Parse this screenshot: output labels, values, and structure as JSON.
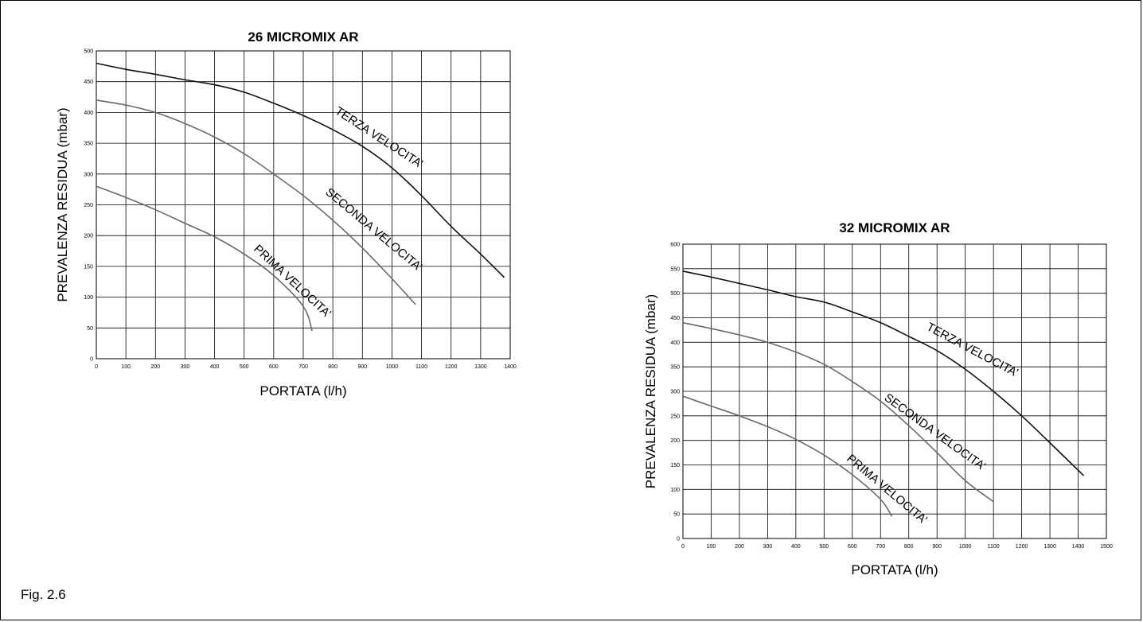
{
  "figure_label": "Fig. 2.6",
  "colors": {
    "terza": "#111111",
    "seconda": "#6a6a6a",
    "prima": "#6a6a6a",
    "grid": "#000000"
  },
  "chart_data": [
    {
      "type": "line",
      "title": "26 MICROMIX AR",
      "xlabel": "PORTATA (l/h)",
      "ylabel": "PREVALENZA RESIDUA (mbar)",
      "xlim": [
        0,
        1400
      ],
      "ylim": [
        0,
        500
      ],
      "xticks": [
        0,
        100,
        200,
        300,
        400,
        500,
        600,
        700,
        800,
        900,
        1000,
        1100,
        1200,
        1300,
        1400
      ],
      "yticks": [
        0,
        50,
        100,
        150,
        200,
        250,
        300,
        350,
        400,
        450,
        500
      ],
      "grid": true,
      "series": [
        {
          "key": "terza",
          "name": "TERZA VELOCITA’",
          "x": [
            0,
            100,
            200,
            300,
            400,
            500,
            600,
            700,
            800,
            900,
            1000,
            1100,
            1200,
            1300,
            1380
          ],
          "y": [
            480,
            470,
            462,
            453,
            445,
            433,
            415,
            395,
            372,
            345,
            310,
            265,
            215,
            170,
            132
          ]
        },
        {
          "key": "seconda",
          "name": "SECONDA VELOCITA’",
          "x": [
            0,
            100,
            200,
            300,
            400,
            500,
            600,
            700,
            800,
            900,
            1000,
            1080
          ],
          "y": [
            420,
            412,
            400,
            382,
            360,
            333,
            300,
            265,
            225,
            180,
            130,
            88
          ]
        },
        {
          "key": "prima",
          "name": "PRIMA VELOCITA’",
          "x": [
            0,
            100,
            200,
            300,
            400,
            500,
            600,
            700,
            730
          ],
          "y": [
            280,
            262,
            242,
            220,
            198,
            170,
            135,
            85,
            45
          ]
        }
      ]
    },
    {
      "type": "line",
      "title": "32 MICROMIX AR",
      "xlabel": "PORTATA (l/h)",
      "ylabel": "PREVALENZA RESIDUA (mbar)",
      "xlim": [
        0,
        1500
      ],
      "ylim": [
        0,
        600
      ],
      "xticks": [
        0,
        100,
        200,
        300,
        400,
        500,
        600,
        700,
        800,
        900,
        1000,
        1100,
        1200,
        1300,
        1400,
        1500
      ],
      "yticks": [
        0,
        50,
        100,
        150,
        200,
        250,
        300,
        350,
        400,
        450,
        500,
        550,
        600
      ],
      "grid": true,
      "series": [
        {
          "key": "terza",
          "name": "TERZA VELOCITA’",
          "x": [
            0,
            100,
            200,
            300,
            400,
            500,
            600,
            700,
            800,
            900,
            1000,
            1100,
            1200,
            1300,
            1420
          ],
          "y": [
            545,
            533,
            520,
            507,
            493,
            482,
            462,
            440,
            412,
            383,
            345,
            300,
            250,
            195,
            128
          ]
        },
        {
          "key": "seconda",
          "name": "SECONDA VELOCITA’",
          "x": [
            0,
            100,
            200,
            300,
            400,
            500,
            600,
            700,
            800,
            900,
            1000,
            1100
          ],
          "y": [
            440,
            428,
            415,
            400,
            380,
            355,
            320,
            280,
            230,
            175,
            118,
            75
          ]
        },
        {
          "key": "prima",
          "name": "PRIMA VELOCITA’",
          "x": [
            0,
            100,
            200,
            300,
            400,
            500,
            600,
            700,
            740
          ],
          "y": [
            290,
            270,
            250,
            228,
            202,
            170,
            130,
            80,
            45
          ]
        }
      ]
    }
  ]
}
